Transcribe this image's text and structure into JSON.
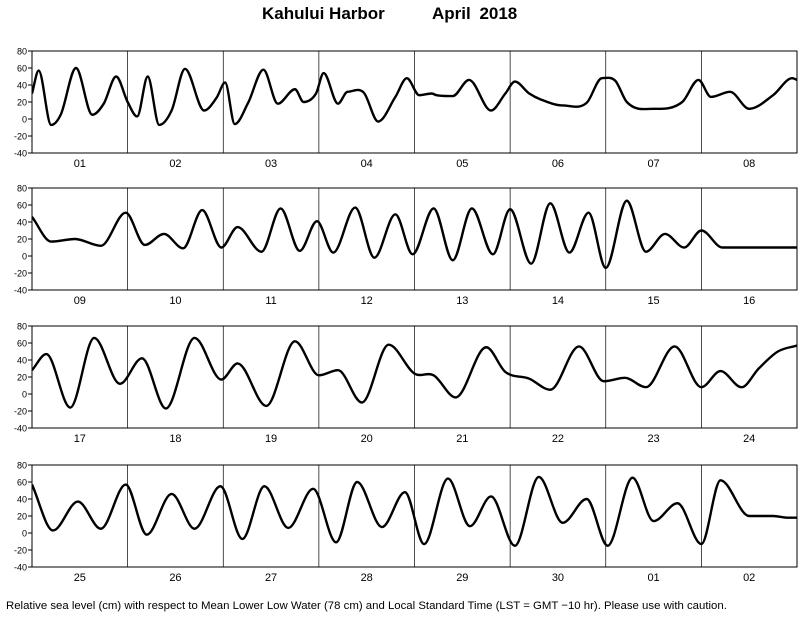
{
  "title": {
    "station": "Kahului Harbor",
    "month_year": "April   2018"
  },
  "footer_note": "Relative sea level (cm) with respect to Mean Lower Low Water (78 cm) and Local Standard Time (LST = GMT −10 hr). Please use with caution.",
  "chart_data": [
    {
      "type": "line",
      "title": "",
      "xlabel": "",
      "ylabel": "",
      "ylim": [
        -40,
        80
      ],
      "yticks": [
        -40,
        -20,
        0,
        20,
        40,
        60,
        80
      ],
      "grid": "vertical day separators",
      "categories": [
        "01",
        "02",
        "03",
        "04",
        "05",
        "06",
        "07",
        "08"
      ],
      "series": [
        {
          "x": [
            0,
            0.07,
            0.2,
            0.3,
            0.46,
            0.63,
            0.75,
            0.88,
            1,
            1.1,
            1.21,
            1.33,
            1.46,
            1.6,
            1.8,
            1.93,
            2.02,
            2.12,
            2.26,
            2.42,
            2.57,
            2.75,
            2.84,
            2.97,
            3.05,
            3.2,
            3.3,
            3.47,
            3.62,
            3.8,
            3.92,
            4.05,
            4.18,
            4.23,
            4.4,
            4.57,
            4.8,
            4.95,
            5.05,
            5.2,
            5.32,
            5.55,
            5.8,
            5.96,
            6.1,
            6.22,
            6.5,
            6.8,
            6.97,
            7.1,
            7.3,
            7.5,
            7.75,
            7.95,
            8
          ],
          "y": [
            30,
            57,
            -7,
            5,
            60,
            5,
            18,
            50,
            20,
            3,
            50,
            -7,
            10,
            59,
            10,
            25,
            43,
            -6,
            19,
            58,
            18,
            35,
            20,
            30,
            54,
            18,
            32,
            31,
            -3,
            26,
            48,
            28,
            30,
            28,
            27,
            46,
            10,
            30,
            44,
            30,
            23,
            16,
            19,
            48,
            45,
            20,
            12,
            20,
            46,
            26,
            32,
            12,
            28,
            48,
            46
          ]
        }
      ]
    },
    {
      "type": "line",
      "title": "",
      "xlabel": "",
      "ylabel": "",
      "ylim": [
        -40,
        80
      ],
      "yticks": [
        -40,
        -20,
        0,
        20,
        40,
        60,
        80
      ],
      "grid": "vertical day separators",
      "categories": [
        "09",
        "10",
        "11",
        "12",
        "13",
        "14",
        "15",
        "16"
      ],
      "series": [
        {
          "x": [
            0,
            0.2,
            0.45,
            0.72,
            0.98,
            1.18,
            1.38,
            1.58,
            1.78,
            1.98,
            2.15,
            2.4,
            2.6,
            2.8,
            2.98,
            3.15,
            3.38,
            3.58,
            3.8,
            3.98,
            4.2,
            4.4,
            4.6,
            4.82,
            5,
            5.22,
            5.42,
            5.62,
            5.82,
            6,
            6.22,
            6.42,
            6.62,
            6.82,
            7,
            7.22,
            7.42,
            7.62,
            7.82,
            8
          ],
          "y": [
            46,
            17,
            20,
            12,
            51,
            13,
            26,
            9,
            54,
            10,
            34,
            5,
            56,
            6,
            41,
            4,
            57,
            -2,
            49,
            2,
            56,
            -5,
            56,
            2,
            55,
            -9,
            62,
            4,
            51,
            -14,
            65,
            5,
            26,
            10,
            30,
            10,
            10,
            10,
            10,
            10
          ]
        }
      ]
    },
    {
      "type": "line",
      "title": "",
      "xlabel": "",
      "ylabel": "",
      "ylim": [
        -40,
        80
      ],
      "yticks": [
        -40,
        -20,
        0,
        20,
        40,
        60,
        80
      ],
      "grid": "vertical day separators",
      "categories": [
        "17",
        "18",
        "19",
        "20",
        "21",
        "22",
        "23",
        "24"
      ],
      "series": [
        {
          "x": [
            0,
            0.15,
            0.4,
            0.65,
            0.92,
            1.15,
            1.4,
            1.7,
            1.98,
            2.15,
            2.45,
            2.75,
            3,
            3.2,
            3.45,
            3.73,
            4,
            4.2,
            4.43,
            4.75,
            4.95,
            5.2,
            5.42,
            5.72,
            5.98,
            6.2,
            6.42,
            6.72,
            7.0,
            7.2,
            7.42,
            7.6,
            7.8,
            8
          ],
          "y": [
            28,
            47,
            -16,
            66,
            12,
            42,
            -17,
            66,
            17,
            36,
            -14,
            62,
            22,
            28,
            -10,
            58,
            24,
            22,
            -4,
            55,
            26,
            18,
            5,
            56,
            15,
            19,
            8,
            56,
            8,
            27,
            8,
            30,
            50,
            57
          ]
        }
      ]
    },
    {
      "type": "line",
      "title": "",
      "xlabel": "",
      "ylabel": "",
      "ylim": [
        -40,
        80
      ],
      "yticks": [
        -40,
        -20,
        0,
        20,
        40,
        60,
        80
      ],
      "grid": "vertical day separators",
      "categories": [
        "25",
        "26",
        "27",
        "28",
        "29",
        "30",
        "01",
        "02"
      ],
      "series": [
        {
          "x": [
            0,
            0.22,
            0.48,
            0.72,
            0.98,
            1.2,
            1.46,
            1.7,
            1.97,
            2.2,
            2.43,
            2.68,
            2.94,
            3.18,
            3.4,
            3.66,
            3.9,
            4.1,
            4.35,
            4.58,
            4.8,
            5.05,
            5.3,
            5.55,
            5.8,
            6.02,
            6.28,
            6.5,
            6.75,
            7,
            7.2,
            7.5,
            7.75,
            7.9,
            8
          ],
          "y": [
            57,
            3,
            37,
            5,
            57,
            -2,
            46,
            5,
            55,
            -7,
            55,
            6,
            52,
            -11,
            60,
            7,
            48,
            -13,
            64,
            8,
            43,
            -15,
            66,
            12,
            40,
            -15,
            65,
            14,
            35,
            -13,
            62,
            20,
            20,
            18,
            18
          ]
        }
      ]
    }
  ]
}
